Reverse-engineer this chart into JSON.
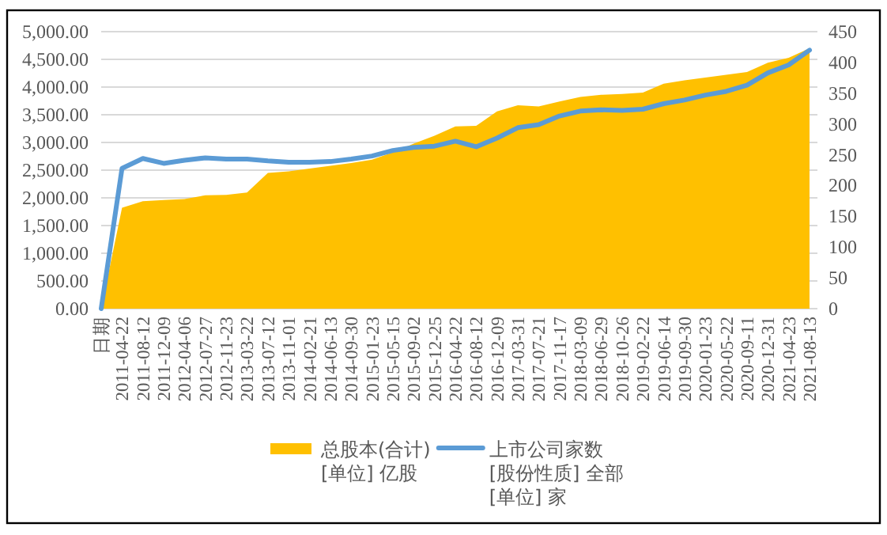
{
  "chart_data": {
    "type": "area",
    "categories": [
      "日期",
      "2011-04-22",
      "2011-08-12",
      "2011-12-09",
      "2012-04-06",
      "2012-07-27",
      "2012-11-23",
      "2013-03-22",
      "2013-07-12",
      "2013-11-01",
      "2014-02-21",
      "2014-06-13",
      "2014-09-30",
      "2015-01-23",
      "2015-05-15",
      "2015-09-02",
      "2015-12-25",
      "2016-04-22",
      "2016-08-12",
      "2016-12-09",
      "2017-03-31",
      "2017-07-21",
      "2017-11-17",
      "2018-03-09",
      "2018-06-29",
      "2018-10-26",
      "2019-02-22",
      "2019-06-14",
      "2019-09-30",
      "2020-01-23",
      "2020-05-22",
      "2020-09-11",
      "2020-12-31",
      "2021-04-23",
      "2021-08-13"
    ],
    "series": [
      {
        "name": "总股本(合计)\n[单位] 亿股",
        "color": "#ffc000",
        "values": [
          0,
          1820,
          1940,
          1960,
          1980,
          2045,
          2055,
          2095,
          2450,
          2480,
          2530,
          2580,
          2630,
          2690,
          2820,
          2980,
          3120,
          3290,
          3300,
          3560,
          3670,
          3650,
          3740,
          3820,
          3860,
          3875,
          3900,
          4060,
          4120,
          4170,
          4220,
          4270,
          4440,
          4530,
          4700
        ]
      },
      {
        "name": "上市公司家数\n[股份性质] 全部\n[单位] 家",
        "type": "line",
        "axis": "y2",
        "color": "#5b9bd5",
        "values": [
          0,
          228,
          244,
          236,
          241,
          245,
          243,
          243,
          240,
          238,
          238,
          239,
          243,
          248,
          257,
          262,
          264,
          272,
          263,
          277,
          294,
          299,
          313,
          321,
          323,
          322,
          324,
          333,
          339,
          347,
          353,
          363,
          383,
          396,
          420
        ]
      }
    ],
    "ylim": [
      0,
      5000
    ],
    "yticks": [
      {
        "value": 0,
        "label": "0.00"
      },
      {
        "value": 500,
        "label": "500.00"
      },
      {
        "value": 1000,
        "label": "1,000.00"
      },
      {
        "value": 1500,
        "label": "1,500.00"
      },
      {
        "value": 2000,
        "label": "2,000.00"
      },
      {
        "value": 2500,
        "label": "2,500.00"
      },
      {
        "value": 3000,
        "label": "3,000.00"
      },
      {
        "value": 3500,
        "label": "3,500.00"
      },
      {
        "value": 4000,
        "label": "4,000.00"
      },
      {
        "value": 4500,
        "label": "4,500.00"
      },
      {
        "value": 5000,
        "label": "5,000.00"
      }
    ],
    "y2lim": [
      0,
      450
    ],
    "y2ticks": [
      0,
      50,
      100,
      150,
      200,
      250,
      300,
      350,
      400,
      450
    ],
    "grid": "y",
    "legend": "bottom"
  }
}
